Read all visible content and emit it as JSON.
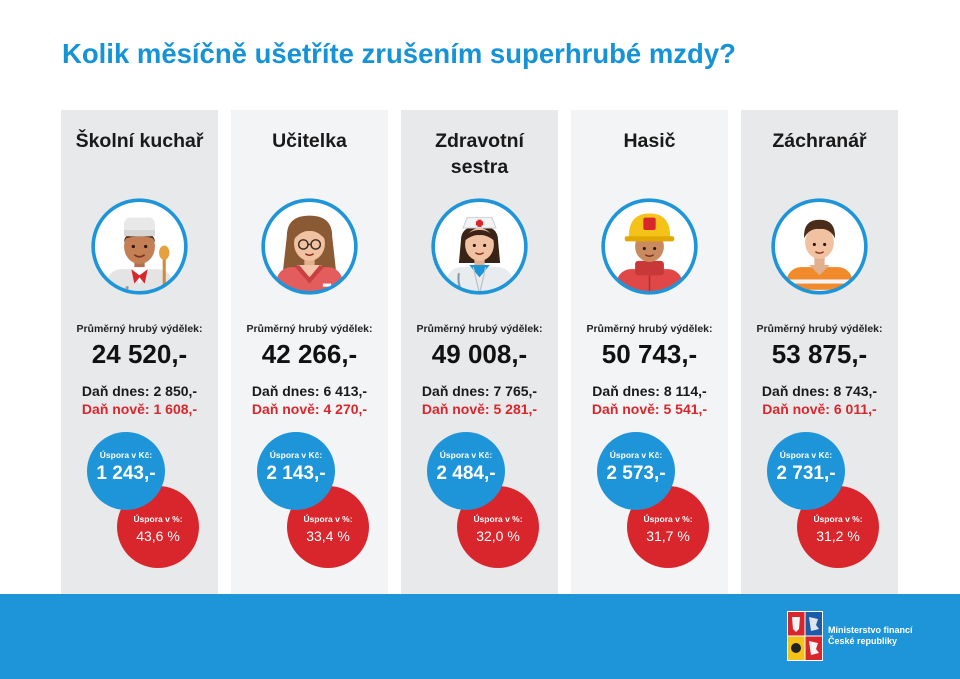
{
  "title": "Kolik měsíčně ušetříte zrušením superhrubé mzdy?",
  "labels": {
    "wage": "Průměrný hrubý výdělek:",
    "saving_czk": "Úspora v Kč:",
    "saving_pct": "Úspora v %:"
  },
  "professions": [
    {
      "name": "Školní kuchař",
      "wage": "24 520,-",
      "tax_now": "Daň dnes: 2 850,-",
      "tax_new": "Daň nově: 1 608,-",
      "saving_czk": "1 243,-",
      "saving_pct": "43,6 %",
      "icon": "cook-icon"
    },
    {
      "name": "Učitelka",
      "wage": "42 266,-",
      "tax_now": "Daň dnes: 6 413,-",
      "tax_new": "Daň nově: 4 270,-",
      "saving_czk": "2 143,-",
      "saving_pct": "33,4 %",
      "icon": "teacher-icon"
    },
    {
      "name": "Zdravotní sestra",
      "wage": "49 008,-",
      "tax_now": "Daň dnes: 7 765,-",
      "tax_new": "Daň nově: 5 281,-",
      "saving_czk": "2 484,-",
      "saving_pct": "32,0 %",
      "icon": "nurse-icon"
    },
    {
      "name": "Hasič",
      "wage": "50 743,-",
      "tax_now": "Daň dnes: 8 114,-",
      "tax_new": "Daň nově: 5 541,-",
      "saving_czk": "2 573,-",
      "saving_pct": "31,7 %",
      "icon": "firefighter-icon"
    },
    {
      "name": "Záchranář",
      "wage": "53 875,-",
      "tax_now": "Daň dnes: 8 743,-",
      "tax_new": "Daň nově: 6 011,-",
      "saving_czk": "2 731,-",
      "saving_pct": "31,2 %",
      "icon": "paramedic-icon"
    }
  ],
  "footer": {
    "ministry_line1": "Ministerstvo financí",
    "ministry_line2": "České republiky"
  },
  "colors": {
    "accent_blue": "#1d95d8",
    "accent_red": "#d9262c",
    "title_blue": "#1593d6"
  }
}
